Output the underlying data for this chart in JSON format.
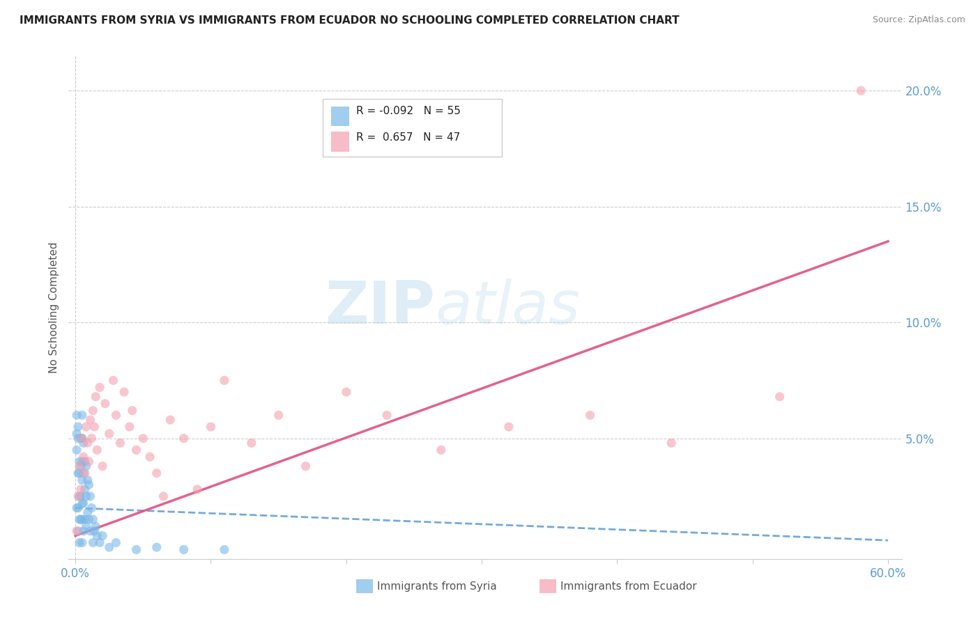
{
  "title": "IMMIGRANTS FROM SYRIA VS IMMIGRANTS FROM ECUADOR NO SCHOOLING COMPLETED CORRELATION CHART",
  "source": "Source: ZipAtlas.com",
  "ylabel": "No Schooling Completed",
  "xlabel_syria": "Immigrants from Syria",
  "xlabel_ecuador": "Immigrants from Ecuador",
  "xlim": [
    -0.005,
    0.61
  ],
  "ylim": [
    -0.002,
    0.215
  ],
  "xtick_vals": [
    0.0,
    0.1,
    0.2,
    0.3,
    0.4,
    0.5,
    0.6
  ],
  "xtick_labels": [
    "0.0%",
    "",
    "",
    "",
    "",
    "",
    "60.0%"
  ],
  "ytick_vals": [
    0.05,
    0.1,
    0.15,
    0.2
  ],
  "ytick_labels": [
    "5.0%",
    "10.0%",
    "15.0%",
    "20.0%"
  ],
  "syria_color": "#7ab8e8",
  "ecuador_color": "#f4a0b0",
  "syria_line_color": "#5b9bd5",
  "ecuador_line_color": "#e05080",
  "legend_r_syria": "-0.092",
  "legend_n_syria": "55",
  "legend_r_ecuador": "0.657",
  "legend_n_ecuador": "47",
  "watermark_zip": "ZIP",
  "watermark_atlas": "atlas",
  "syria_x": [
    0.001,
    0.001,
    0.001,
    0.001,
    0.002,
    0.002,
    0.002,
    0.002,
    0.002,
    0.003,
    0.003,
    0.003,
    0.003,
    0.003,
    0.004,
    0.004,
    0.004,
    0.004,
    0.005,
    0.005,
    0.005,
    0.005,
    0.005,
    0.005,
    0.005,
    0.006,
    0.006,
    0.006,
    0.006,
    0.007,
    0.007,
    0.007,
    0.008,
    0.008,
    0.008,
    0.009,
    0.009,
    0.01,
    0.01,
    0.011,
    0.011,
    0.012,
    0.013,
    0.013,
    0.014,
    0.015,
    0.016,
    0.018,
    0.02,
    0.025,
    0.03,
    0.045,
    0.06,
    0.08,
    0.11
  ],
  "syria_y": [
    0.06,
    0.052,
    0.045,
    0.02,
    0.055,
    0.05,
    0.035,
    0.02,
    0.01,
    0.04,
    0.035,
    0.025,
    0.015,
    0.005,
    0.05,
    0.038,
    0.025,
    0.015,
    0.06,
    0.05,
    0.04,
    0.032,
    0.022,
    0.015,
    0.005,
    0.048,
    0.035,
    0.022,
    0.01,
    0.04,
    0.028,
    0.015,
    0.038,
    0.025,
    0.012,
    0.032,
    0.018,
    0.03,
    0.015,
    0.025,
    0.01,
    0.02,
    0.015,
    0.005,
    0.01,
    0.012,
    0.008,
    0.005,
    0.008,
    0.003,
    0.005,
    0.002,
    0.003,
    0.002,
    0.002
  ],
  "ecuador_x": [
    0.001,
    0.002,
    0.003,
    0.004,
    0.005,
    0.006,
    0.007,
    0.008,
    0.009,
    0.01,
    0.011,
    0.012,
    0.013,
    0.014,
    0.015,
    0.016,
    0.018,
    0.02,
    0.022,
    0.025,
    0.028,
    0.03,
    0.033,
    0.036,
    0.04,
    0.042,
    0.045,
    0.05,
    0.055,
    0.06,
    0.065,
    0.07,
    0.08,
    0.09,
    0.1,
    0.11,
    0.13,
    0.15,
    0.17,
    0.2,
    0.23,
    0.27,
    0.32,
    0.38,
    0.44,
    0.52,
    0.58
  ],
  "ecuador_y": [
    0.01,
    0.025,
    0.038,
    0.028,
    0.05,
    0.042,
    0.035,
    0.055,
    0.048,
    0.04,
    0.058,
    0.05,
    0.062,
    0.055,
    0.068,
    0.045,
    0.072,
    0.038,
    0.065,
    0.052,
    0.075,
    0.06,
    0.048,
    0.07,
    0.055,
    0.062,
    0.045,
    0.05,
    0.042,
    0.035,
    0.025,
    0.058,
    0.05,
    0.028,
    0.055,
    0.075,
    0.048,
    0.06,
    0.038,
    0.07,
    0.06,
    0.045,
    0.055,
    0.06,
    0.048,
    0.068,
    0.2
  ]
}
